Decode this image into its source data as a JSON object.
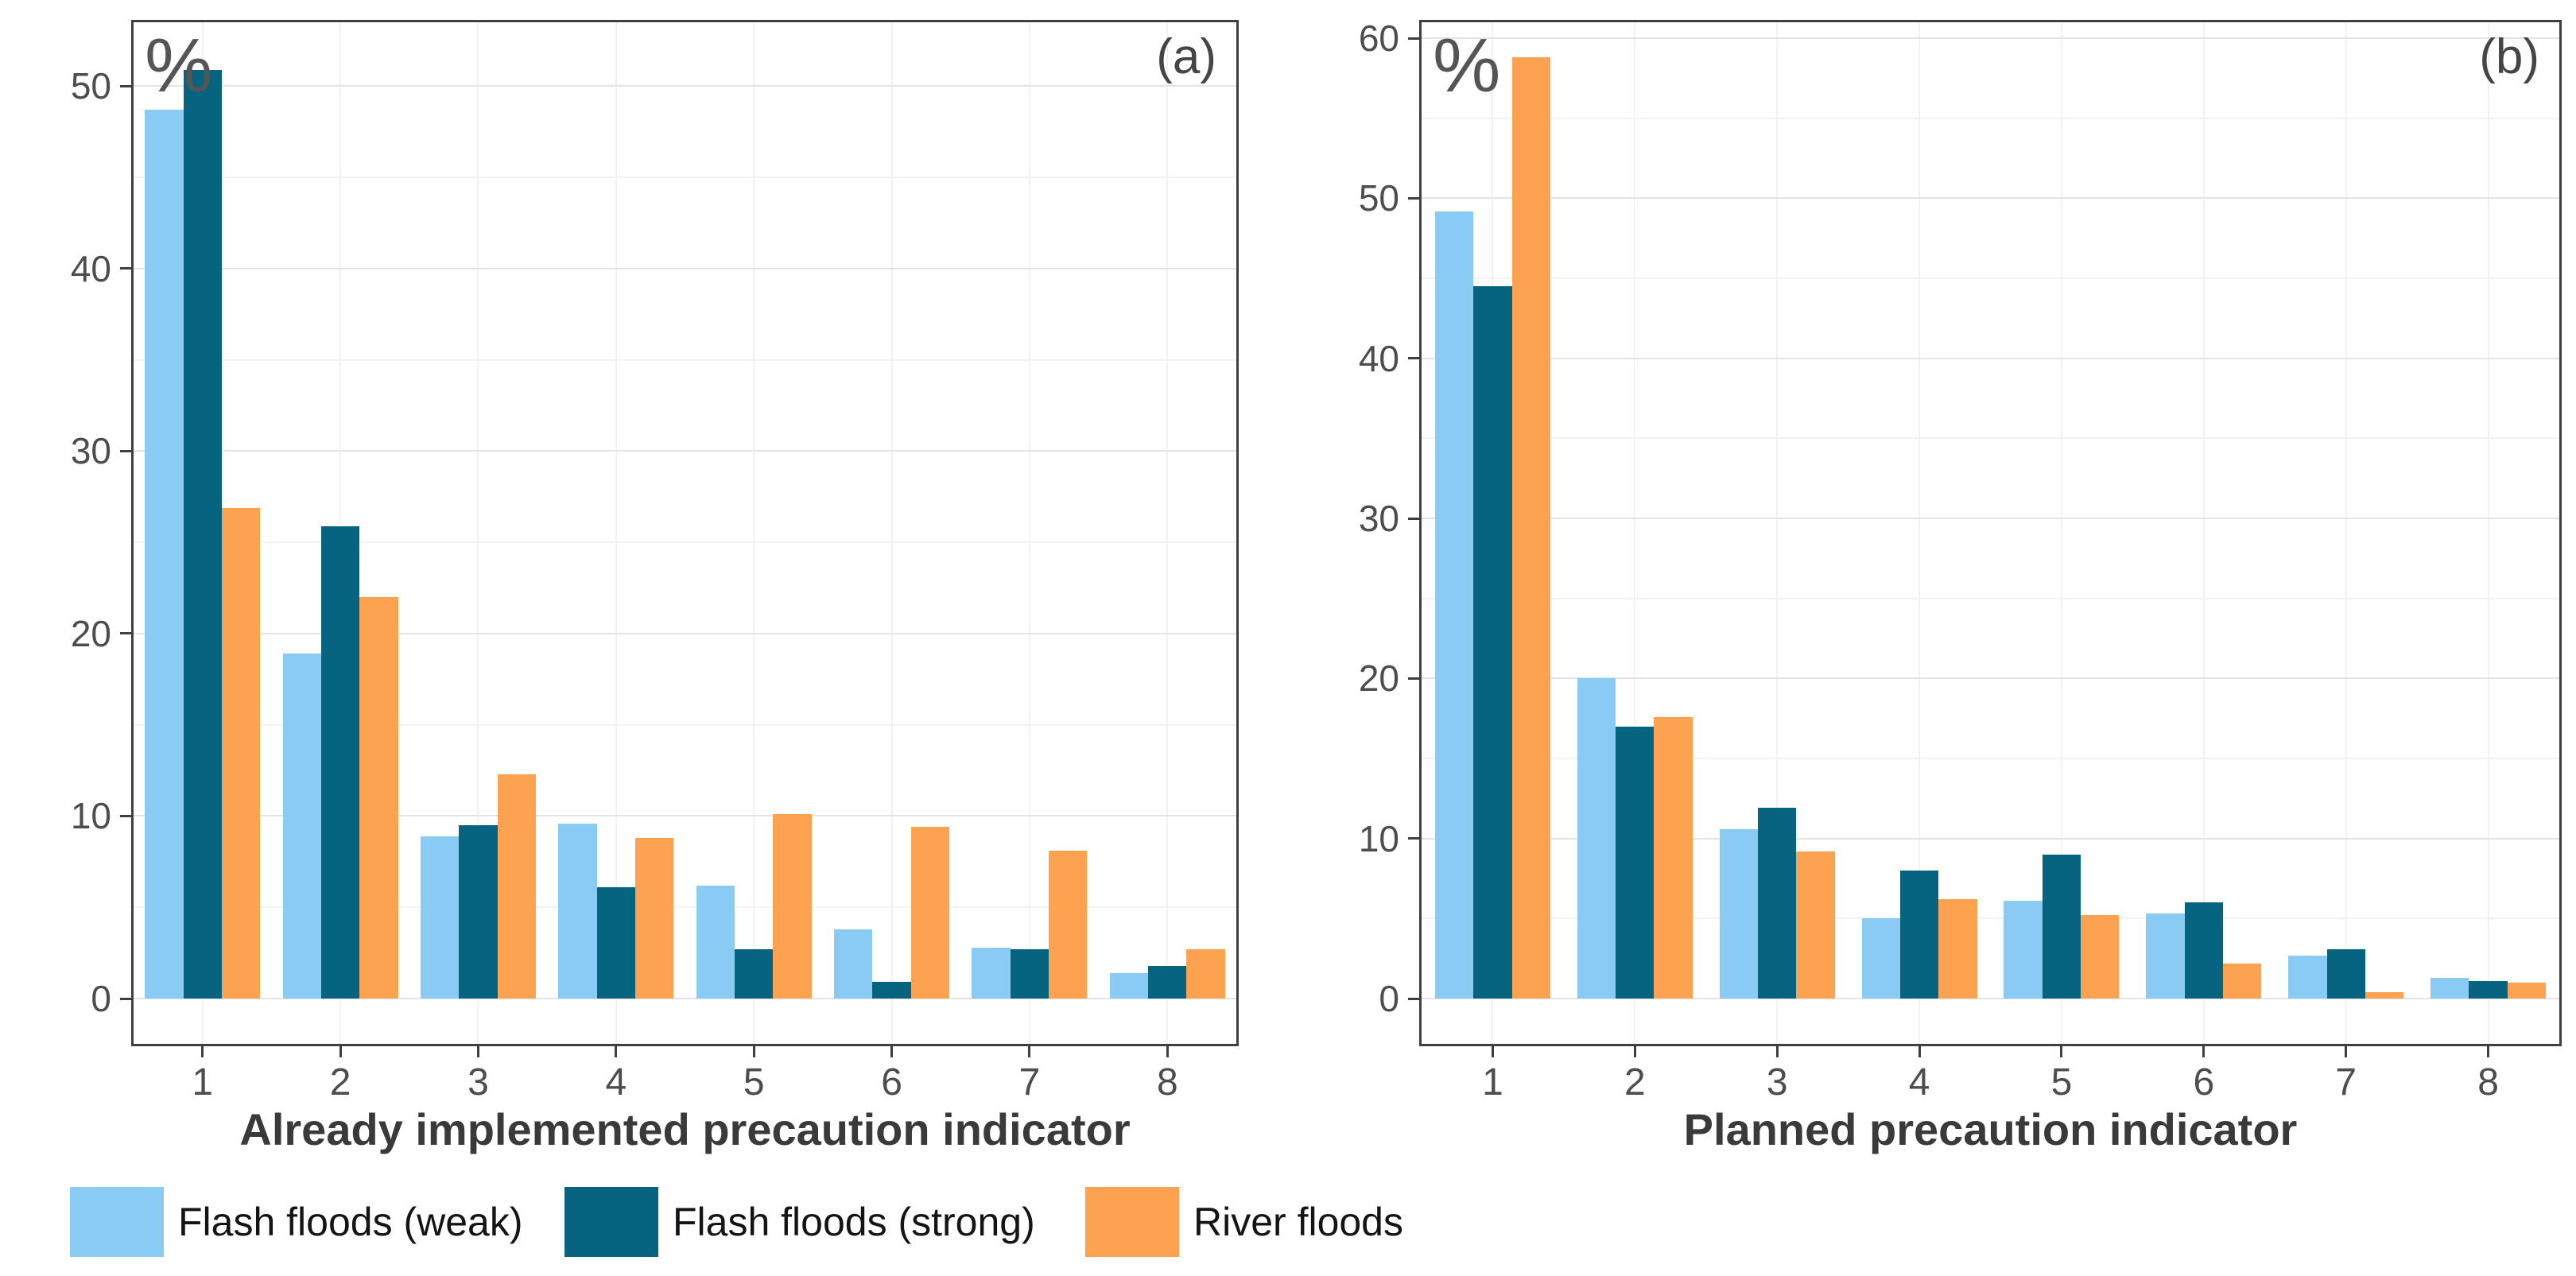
{
  "colors": {
    "flash_floods_weak": "#89CBF2",
    "flash_floods_strong": "#066480",
    "river_floods": "#FCA251",
    "axis_text": "#4D4D4D",
    "title_text": "#3A3A3A",
    "panel_border": "#3F3F3F",
    "grid_major": "#E4E4E4",
    "grid_minor": "#F2F2F2",
    "tick_mark": "#3F3F3F",
    "legend_text": "#141414",
    "background": "#FFFFFF"
  },
  "legend": {
    "items": [
      {
        "label": "Flash floods (weak)",
        "color_key": "flash_floods_weak"
      },
      {
        "label": "Flash floods (strong)",
        "color_key": "flash_floods_strong"
      },
      {
        "label": "River floods",
        "color_key": "river_floods"
      }
    ]
  },
  "chart_data": [
    {
      "type": "bar",
      "panel_tag": "(a)",
      "y_unit_label": "%",
      "xlabel": "Already implemented precaution indicator",
      "categories": [
        "1",
        "2",
        "3",
        "4",
        "5",
        "6",
        "7",
        "8"
      ],
      "series": [
        {
          "name": "Flash floods (weak)",
          "color_key": "flash_floods_weak",
          "values": [
            48.7,
            18.9,
            8.9,
            9.6,
            6.2,
            3.8,
            2.8,
            1.4
          ]
        },
        {
          "name": "Flash floods (strong)",
          "color_key": "flash_floods_strong",
          "values": [
            50.9,
            25.9,
            9.5,
            6.1,
            2.7,
            0.9,
            2.7,
            1.8
          ]
        },
        {
          "name": "River floods",
          "color_key": "river_floods",
          "values": [
            26.9,
            22.0,
            12.3,
            8.8,
            10.1,
            9.4,
            8.1,
            2.7
          ]
        }
      ],
      "ylim": [
        0,
        53.5
      ],
      "y_major_ticks": [
        0,
        10,
        20,
        30,
        40,
        50
      ],
      "y_minor_step": 5,
      "grid": true,
      "legend_position": "bottom"
    },
    {
      "type": "bar",
      "panel_tag": "(b)",
      "y_unit_label": "%",
      "xlabel": "Planned precaution indicator",
      "categories": [
        "1",
        "2",
        "3",
        "4",
        "5",
        "6",
        "7",
        "8"
      ],
      "series": [
        {
          "name": "Flash floods (weak)",
          "color_key": "flash_floods_weak",
          "values": [
            49.2,
            20.0,
            10.6,
            5.0,
            6.1,
            5.3,
            2.7,
            1.3
          ]
        },
        {
          "name": "Flash floods (strong)",
          "color_key": "flash_floods_strong",
          "values": [
            44.5,
            17.0,
            11.9,
            8.0,
            9.0,
            6.0,
            3.1,
            1.1
          ]
        },
        {
          "name": "River floods",
          "color_key": "river_floods",
          "values": [
            58.8,
            17.6,
            9.2,
            6.2,
            5.2,
            2.2,
            0.4,
            1.0
          ]
        }
      ],
      "ylim": [
        0,
        61
      ],
      "y_major_ticks": [
        0,
        10,
        20,
        30,
        40,
        50,
        60
      ],
      "y_minor_step": 5,
      "grid": true,
      "legend_position": "bottom"
    }
  ]
}
